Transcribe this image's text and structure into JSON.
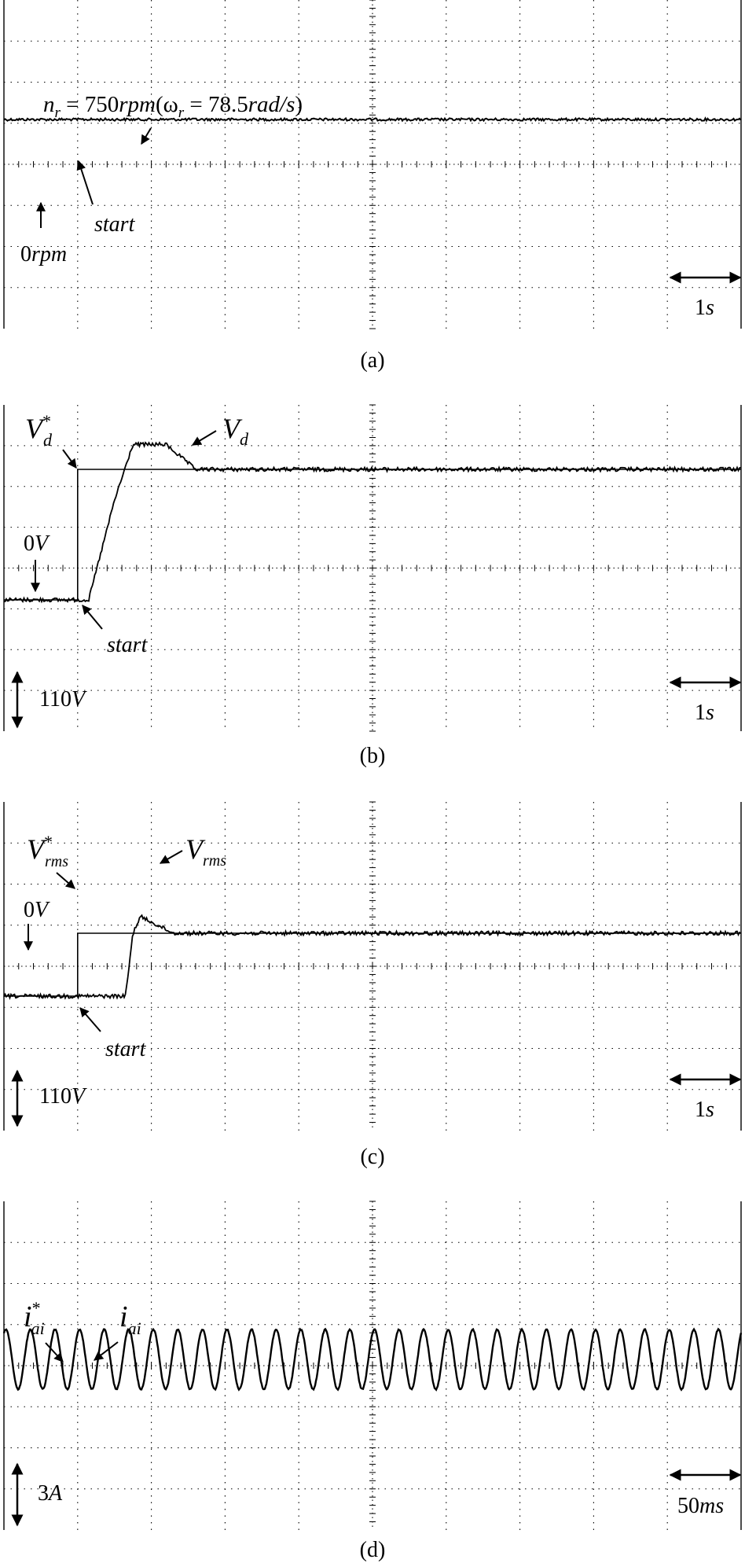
{
  "panels": [
    {
      "caption": "(a)",
      "trace_kind": "speed",
      "annotations": {
        "speed_label": "n",
        "speed_sub": "r",
        "speed_eq": " = 750",
        "speed_unit": "rpm",
        "omega_open": "(ω",
        "omega_sub": "r",
        "omega_eq": " = 78.5",
        "omega_unit": "rad/s",
        "omega_close": ")",
        "start": "start",
        "zero_num": "0",
        "zero_unit": "rpm",
        "time_scale_num": "1",
        "time_scale_unit": "s"
      }
    },
    {
      "caption": "(b)",
      "trace_kind": "dc_voltage",
      "annotations": {
        "ref_main": "V",
        "ref_sub": "d",
        "ref_sup": "*",
        "meas_main": "V",
        "meas_sub": "d",
        "zero_num": "0",
        "zero_unit": "V",
        "start": "start",
        "amp_scale_num": "110",
        "amp_scale_unit": "V",
        "time_scale_num": "1",
        "time_scale_unit": "s"
      }
    },
    {
      "caption": "(c)",
      "trace_kind": "rms_voltage",
      "annotations": {
        "ref_main": "V",
        "ref_sub": "rms",
        "ref_sup": "*",
        "meas_main": "V",
        "meas_sub": "rms",
        "zero_num": "0",
        "zero_unit": "V",
        "start": "start",
        "amp_scale_num": "110",
        "amp_scale_unit": "V",
        "time_scale_num": "1",
        "time_scale_unit": "s"
      }
    },
    {
      "caption": "(d)",
      "trace_kind": "current",
      "annotations": {
        "ref_main": "i",
        "ref_sub": "ai",
        "ref_sup": "*",
        "meas_main": "i",
        "meas_sub": "ai",
        "amp_scale_num": "3",
        "amp_scale_unit": "A",
        "time_scale_num": "50",
        "time_scale_unit": "ms"
      }
    }
  ],
  "chart_data": [
    {
      "type": "line",
      "subplot": "(a)",
      "time_division": "1 s",
      "series": [
        {
          "name": "n_r",
          "segments": [
            {
              "x": [
                0,
                10
              ],
              "y": [
                750,
                750
              ]
            }
          ]
        }
      ],
      "grid": true
    },
    {
      "type": "line",
      "subplot": "(b)",
      "time_division": "1 s",
      "amplitude_division": "110 V",
      "series": [
        {
          "name": "V_d*",
          "x": [
            0,
            1.0,
            1.0,
            10
          ],
          "y": [
            0,
            0,
            1.05,
            1.05
          ]
        },
        {
          "name": "V_d",
          "x": [
            0,
            1.15,
            1.5,
            1.75,
            2.2,
            2.6,
            10
          ],
          "y": [
            0,
            0,
            0.8,
            1.25,
            1.25,
            1.05,
            1.05
          ]
        }
      ],
      "grid": true
    },
    {
      "type": "line",
      "subplot": "(c)",
      "time_division": "1 s",
      "amplitude_division": "110 V",
      "series": [
        {
          "name": "V_rms*",
          "x": [
            0,
            1.0,
            1.0,
            10
          ],
          "y": [
            0,
            0,
            0.75,
            0.75
          ]
        },
        {
          "name": "V_rms",
          "x": [
            0,
            1.65,
            1.75,
            1.85,
            2.3,
            10
          ],
          "y": [
            0,
            0,
            0.75,
            0.95,
            0.75,
            0.75
          ]
        }
      ],
      "grid": true
    },
    {
      "type": "line",
      "subplot": "(d)",
      "time_division": "50 ms",
      "amplitude_division": "3 A",
      "series": [
        {
          "name": "i_ai*",
          "waveform": "sinusoid",
          "cycles_per_division": 3
        },
        {
          "name": "i_ai",
          "waveform": "sinusoid",
          "cycles_per_division": 3
        }
      ],
      "grid": true
    }
  ]
}
